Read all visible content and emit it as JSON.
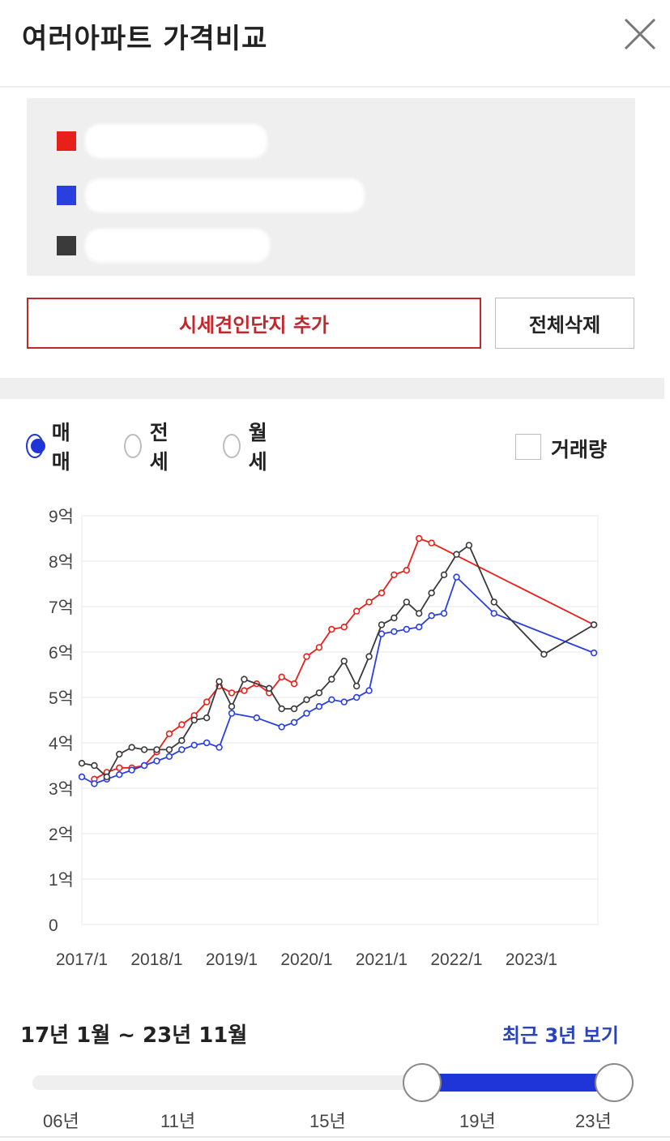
{
  "header": {
    "title": "여러아파트 가격비교",
    "close_icon": "close-icon"
  },
  "legend": {
    "items": [
      {
        "color": "#e8201a",
        "name": ""
      },
      {
        "color": "#2a3fe0",
        "name": ""
      },
      {
        "color": "#3a3a3a",
        "name": ""
      }
    ]
  },
  "actions": {
    "add_label": "시세견인단지 추가",
    "delete_all_label": "전체삭제"
  },
  "filters": {
    "options": [
      {
        "label": "매매",
        "selected": true
      },
      {
        "label": "전세",
        "selected": false
      },
      {
        "label": "월세",
        "selected": false
      }
    ],
    "volume_label": "거래량",
    "volume_checked": false
  },
  "chart_data": {
    "type": "line",
    "ylabel": "",
    "xlabel": "",
    "y_ticks": [
      "0",
      "1억",
      "2억",
      "3억",
      "4억",
      "5억",
      "6억",
      "7억",
      "8억",
      "9억"
    ],
    "x_ticks": [
      "2017/1",
      "2018/1",
      "2019/1",
      "2020/1",
      "2021/1",
      "2022/1",
      "2023/1"
    ],
    "xlim": [
      "2017/1",
      "2023/11"
    ],
    "ylim": [
      0,
      9
    ],
    "unit": "억",
    "grid": true,
    "series": [
      {
        "color": "#e8201a",
        "x": [
          "2017/3",
          "2017/5",
          "2017/7",
          "2017/9",
          "2017/11",
          "2018/1",
          "2018/3",
          "2018/5",
          "2018/7",
          "2018/9",
          "2018/11",
          "2019/1",
          "2019/3",
          "2019/5",
          "2019/7",
          "2019/9",
          "2019/11",
          "2020/1",
          "2020/3",
          "2020/5",
          "2020/7",
          "2020/9",
          "2020/11",
          "2021/1",
          "2021/3",
          "2021/5",
          "2021/7",
          "2021/9",
          "2023/11"
        ],
        "values": [
          3.2,
          3.35,
          3.45,
          3.45,
          3.5,
          3.8,
          4.2,
          4.4,
          4.6,
          4.9,
          5.25,
          5.1,
          5.15,
          5.3,
          5.1,
          5.45,
          5.3,
          5.9,
          6.1,
          6.5,
          6.55,
          6.9,
          7.1,
          7.3,
          7.7,
          7.8,
          8.5,
          8.4,
          6.6
        ]
      },
      {
        "color": "#2a3fe0",
        "x": [
          "2017/1",
          "2017/3",
          "2017/5",
          "2017/7",
          "2017/9",
          "2017/11",
          "2018/1",
          "2018/3",
          "2018/5",
          "2018/7",
          "2018/9",
          "2018/11",
          "2019/1",
          "2019/5",
          "2019/9",
          "2019/11",
          "2020/1",
          "2020/3",
          "2020/5",
          "2020/7",
          "2020/9",
          "2020/11",
          "2021/1",
          "2021/3",
          "2021/5",
          "2021/7",
          "2021/9",
          "2021/11",
          "2022/1",
          "2022/7",
          "2023/11"
        ],
        "values": [
          3.25,
          3.1,
          3.2,
          3.3,
          3.4,
          3.5,
          3.6,
          3.7,
          3.85,
          3.95,
          4.0,
          3.9,
          4.65,
          4.55,
          4.35,
          4.45,
          4.65,
          4.8,
          4.95,
          4.9,
          5.0,
          5.15,
          6.4,
          6.45,
          6.5,
          6.55,
          6.8,
          6.85,
          7.65,
          6.85,
          5.98
        ]
      },
      {
        "color": "#3a3a3a",
        "x": [
          "2017/1",
          "2017/3",
          "2017/5",
          "2017/7",
          "2017/9",
          "2017/11",
          "2018/1",
          "2018/3",
          "2018/5",
          "2018/7",
          "2018/9",
          "2018/11",
          "2019/1",
          "2019/3",
          "2019/7",
          "2019/9",
          "2019/11",
          "2020/1",
          "2020/3",
          "2020/5",
          "2020/7",
          "2020/9",
          "2020/11",
          "2021/1",
          "2021/3",
          "2021/5",
          "2021/7",
          "2021/9",
          "2021/11",
          "2022/1",
          "2022/3",
          "2022/7",
          "2023/3",
          "2023/11"
        ],
        "values": [
          3.55,
          3.5,
          3.25,
          3.75,
          3.9,
          3.85,
          3.85,
          3.85,
          4.05,
          4.5,
          4.55,
          5.35,
          4.8,
          5.4,
          5.2,
          4.75,
          4.75,
          4.95,
          5.1,
          5.4,
          5.8,
          5.25,
          5.9,
          6.6,
          6.75,
          7.1,
          6.85,
          7.3,
          7.7,
          8.15,
          8.35,
          7.1,
          5.95,
          6.6
        ]
      }
    ]
  },
  "range": {
    "text": "17년 1월 ~ 23년 11월",
    "recent_label": "최근 3년 보기",
    "scale_ticks": [
      "06년",
      "11년",
      "15년",
      "19년",
      "23년"
    ],
    "selected_start": "17년 1월",
    "selected_end": "23년 11월",
    "accent": "#1f35d8"
  }
}
